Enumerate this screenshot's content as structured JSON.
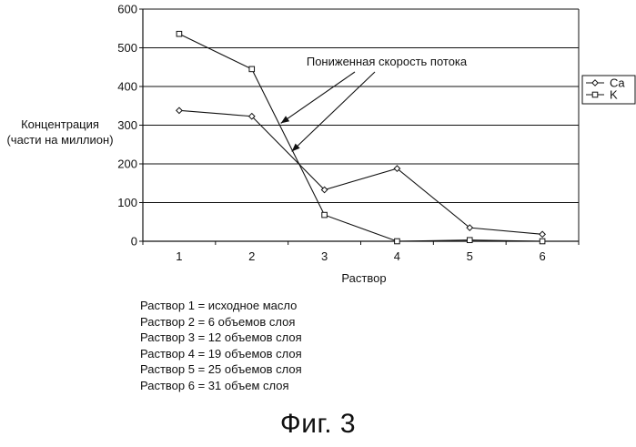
{
  "chart_data": {
    "type": "line",
    "x": [
      1,
      2,
      3,
      4,
      5,
      6
    ],
    "xlabel": "Раствор",
    "ylabel_lines": [
      "Концентрация",
      "(части на миллион)"
    ],
    "ylim": [
      0,
      600
    ],
    "yticks": [
      0,
      100,
      200,
      300,
      400,
      500,
      600
    ],
    "grid": "horizontal",
    "legend_position": "right",
    "series": [
      {
        "name": "Ca",
        "marker": "diamond",
        "values": [
          338,
          323,
          133,
          188,
          35,
          18
        ]
      },
      {
        "name": "K",
        "marker": "square",
        "values": [
          536,
          445,
          68,
          0,
          3,
          0
        ]
      }
    ],
    "annotation": {
      "text": "Пониженная скорость потока",
      "points_to": [
        {
          "x": 2.4,
          "y": 305
        },
        {
          "x": 2.55,
          "y": 232
        }
      ]
    }
  },
  "notes": [
    "Раствор 1 = исходное масло",
    "Раствор 2 = 6 объемов слоя",
    "Раствор 3 = 12 объемов слоя",
    "Раствор 4 = 19 объемов слоя",
    "Раствор 5 = 25 объемов слоя",
    "Раствор 6 = 31 объем слоя"
  ],
  "figure_caption": "Фиг. 3"
}
